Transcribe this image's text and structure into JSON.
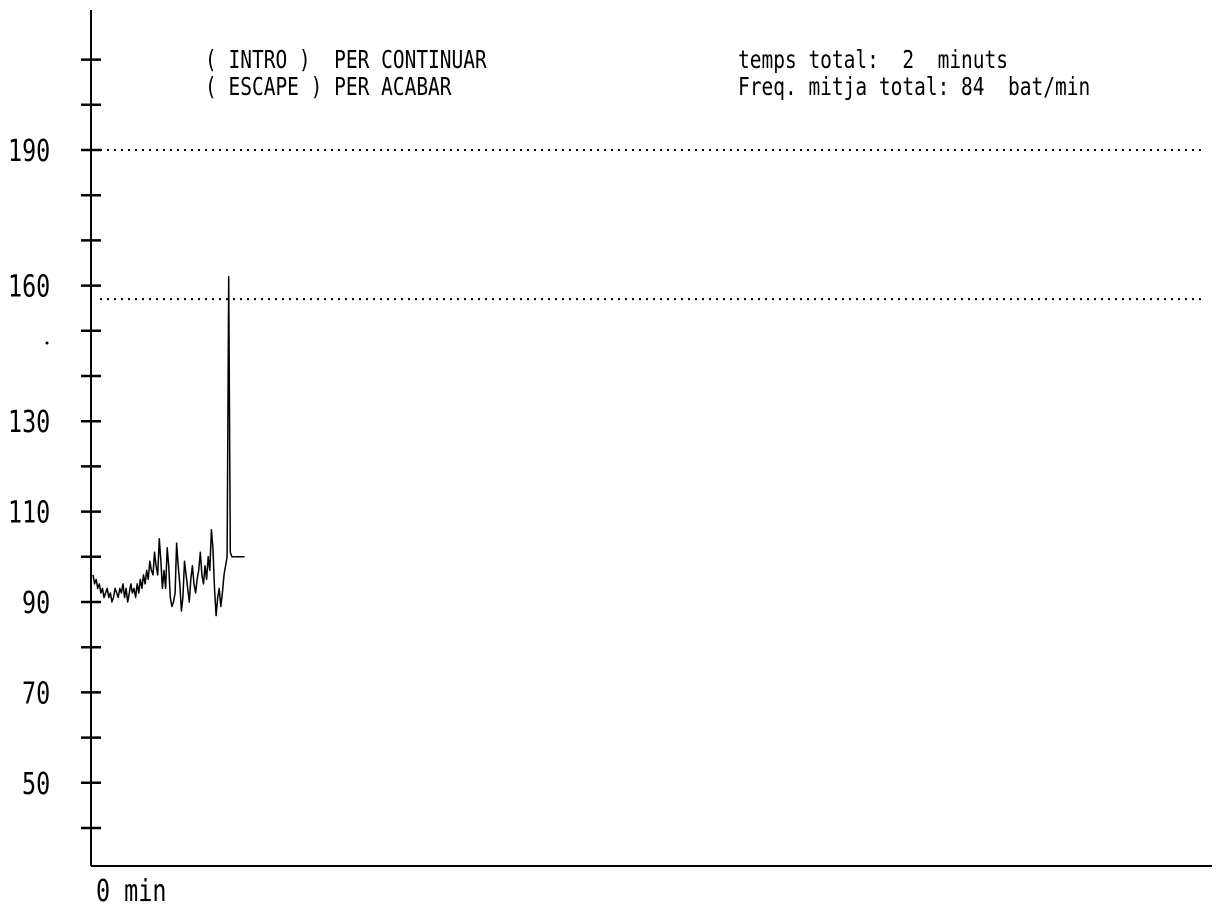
{
  "header": {
    "continue_hint": "( INTRO )  PER CONTINUAR",
    "exit_hint": "( ESCAPE ) PER ACABAR",
    "total_time_label": "temps total:  2  minuts",
    "mean_rate_label": "Freq. mitja total: 84  bat/min"
  },
  "chart_data": {
    "type": "line",
    "title": "",
    "xlabel": "0 min",
    "ylabel": "",
    "xlim": [
      0,
      2
    ],
    "ylim": [
      30,
      220
    ],
    "y_ticks": [
      40,
      50,
      60,
      70,
      80,
      90,
      100,
      110,
      120,
      130,
      140,
      150,
      160,
      170,
      180,
      190,
      200,
      210
    ],
    "y_tick_labels": [
      {
        "value": 190,
        "label": "190"
      },
      {
        "value": 160,
        "label": "160"
      },
      {
        "value": 130,
        "label": "130"
      },
      {
        "value": 110,
        "label": "110"
      },
      {
        "value": 90,
        "label": "90"
      },
      {
        "value": 70,
        "label": "70"
      },
      {
        "value": 50,
        "label": "50"
      }
    ],
    "reference_lines": [
      {
        "y": 190,
        "style": "dotted"
      },
      {
        "y": 157,
        "style": "dotted"
      }
    ],
    "grid": false,
    "series": [
      {
        "x": [
          0.0,
          0.006,
          0.012,
          0.018,
          0.024,
          0.03,
          0.036,
          0.042,
          0.048,
          0.054,
          0.06,
          0.066,
          0.072,
          0.078,
          0.084,
          0.09,
          0.096,
          0.102,
          0.108,
          0.114,
          0.12,
          0.126,
          0.132,
          0.138,
          0.144,
          0.15,
          0.156,
          0.162,
          0.168,
          0.174,
          0.18,
          0.186,
          0.192,
          0.198,
          0.204,
          0.21,
          0.216,
          0.222,
          0.228,
          0.234,
          0.24,
          0.246,
          0.252,
          0.258,
          0.264,
          0.27,
          0.276,
          0.282,
          0.288,
          0.294,
          0.3,
          0.306,
          0.312,
          0.318,
          0.324,
          0.33,
          0.336,
          0.342,
          0.348,
          0.354,
          0.36,
          0.366,
          0.372,
          0.378,
          0.384,
          0.39,
          0.396,
          0.402,
          0.408,
          0.414,
          0.42,
          0.426,
          0.432,
          0.438,
          0.444,
          0.45,
          0.456,
          0.462,
          0.468,
          0.474,
          0.48,
          0.486,
          0.492,
          0.498,
          0.504,
          0.51,
          0.516,
          0.522,
          0.528,
          0.534,
          0.54,
          0.546,
          0.552,
          0.558,
          0.564,
          0.57,
          0.576
        ],
        "y": [
          96,
          94,
          95,
          93,
          94,
          92,
          93,
          91,
          92,
          93,
          91,
          92,
          90,
          91,
          93,
          92,
          91,
          93,
          92,
          94,
          91,
          93,
          90,
          92,
          94,
          92,
          93,
          91,
          94,
          92,
          95,
          93,
          96,
          94,
          97,
          95,
          99,
          97,
          96,
          101,
          98,
          96,
          104,
          99,
          93,
          97,
          93,
          102,
          98,
          91,
          89,
          90,
          92,
          103,
          98,
          94,
          88,
          91,
          99,
          96,
          93,
          90,
          95,
          98,
          94,
          92,
          95,
          97,
          101,
          96,
          94,
          98,
          95,
          100,
          97,
          106,
          102,
          93,
          87,
          91,
          93,
          89,
          92,
          96,
          98,
          100,
          162,
          101,
          100,
          100,
          100,
          100,
          100,
          100,
          100,
          100,
          100
        ]
      }
    ]
  }
}
